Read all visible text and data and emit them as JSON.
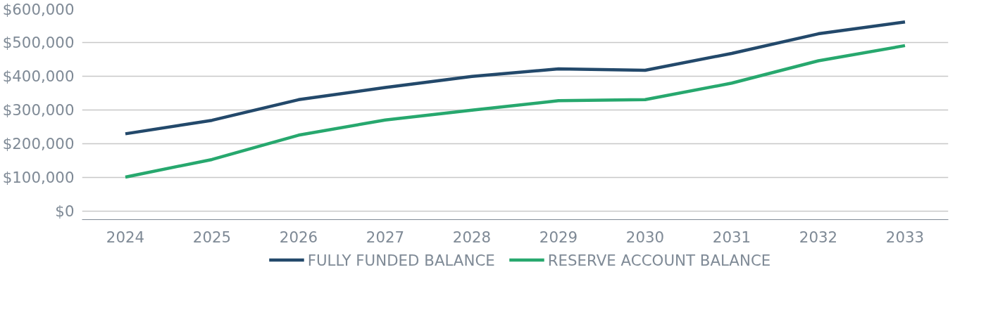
{
  "chart_data": {
    "type": "line",
    "categories": [
      "2024",
      "2025",
      "2026",
      "2027",
      "2028",
      "2029",
      "2030",
      "2031",
      "2032",
      "2033"
    ],
    "series": [
      {
        "name": "FULLY FUNDED BALANCE",
        "color": "#23496b",
        "values": [
          230000,
          270000,
          331000,
          367000,
          400000,
          422000,
          418000,
          468000,
          526000,
          561000
        ]
      },
      {
        "name": "RESERVE ACCOUNT BALANCE",
        "color": "#27a86e",
        "values": [
          102000,
          154000,
          226000,
          271000,
          300000,
          328000,
          331000,
          380000,
          446000,
          491000
        ]
      }
    ],
    "ylim": [
      -24000,
      600000
    ],
    "yticks": [
      {
        "value": 0,
        "label": "$0"
      },
      {
        "value": 100000,
        "label": "$100,000"
      },
      {
        "value": 200000,
        "label": "$200,000"
      },
      {
        "value": 300000,
        "label": "$300,000"
      },
      {
        "value": 400000,
        "label": "$400,000"
      },
      {
        "value": 500000,
        "label": "$500,000"
      },
      {
        "value": 600000,
        "label": "$600,000"
      }
    ],
    "grid": "y",
    "legend": "bottom",
    "marker": "none",
    "line_style": "solid"
  }
}
